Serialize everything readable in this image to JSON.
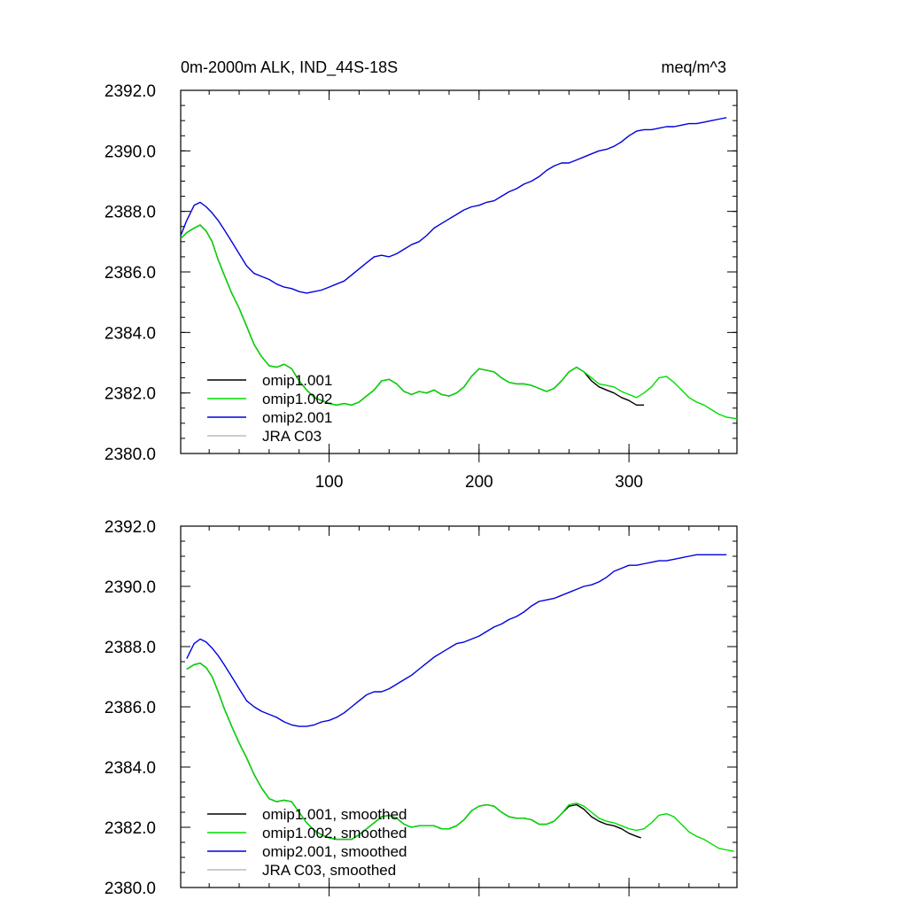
{
  "figure": {
    "title_left": "0m-2000m ALK, IND_44S-18S",
    "title_right": "meq/m^3"
  },
  "chart_data": [
    {
      "type": "line",
      "panel": "raw",
      "xlim": [
        1,
        372
      ],
      "ylim": [
        2380,
        2392
      ],
      "xticks": [
        100,
        200,
        300
      ],
      "yticks": [
        2380,
        2382,
        2384,
        2386,
        2388,
        2390,
        2392
      ],
      "ytick_labels": [
        "2380.0",
        "2382.0",
        "2384.0",
        "2386.0",
        "2388.0",
        "2390.0",
        "2392.0"
      ],
      "xtick_labels": [
        "100",
        "200",
        "300"
      ],
      "legend_position": "bottom-left",
      "series": [
        {
          "name": "omip1.001",
          "color": "#000000",
          "x": [
            1,
            5,
            10,
            14,
            18,
            22,
            26,
            30,
            35,
            40,
            45,
            50,
            55,
            60,
            65,
            70,
            75,
            80,
            85,
            90,
            95,
            100,
            105,
            110,
            115,
            120,
            125,
            130,
            135,
            140,
            145,
            150,
            155,
            160,
            165,
            170,
            175,
            180,
            185,
            190,
            195,
            200,
            205,
            210,
            215,
            220,
            225,
            230,
            235,
            240,
            245,
            250,
            255,
            260,
            265,
            270,
            275,
            280,
            285,
            290,
            295,
            300,
            305,
            310
          ],
          "y": [
            2387.1,
            2387.3,
            2387.45,
            2387.55,
            2387.35,
            2387.0,
            2386.4,
            2385.9,
            2385.3,
            2384.8,
            2384.2,
            2383.6,
            2383.2,
            2382.9,
            2382.85,
            2382.95,
            2382.8,
            2382.4,
            2382.1,
            2381.85,
            2381.75,
            2381.65,
            2381.6,
            2381.65,
            2381.6,
            2381.7,
            2381.9,
            2382.1,
            2382.4,
            2382.45,
            2382.3,
            2382.05,
            2381.95,
            2382.05,
            2382.0,
            2382.1,
            2381.95,
            2381.9,
            2382.0,
            2382.2,
            2382.55,
            2382.8,
            2382.75,
            2382.7,
            2382.5,
            2382.35,
            2382.3,
            2382.3,
            2382.25,
            2382.15,
            2382.05,
            2382.15,
            2382.4,
            2382.7,
            2382.85,
            2382.7,
            2382.4,
            2382.2,
            2382.1,
            2382.0,
            2381.85,
            2381.75,
            2381.6,
            2381.6
          ]
        },
        {
          "name": "omip1.002",
          "color": "#00dd00",
          "x": [
            1,
            5,
            10,
            14,
            18,
            22,
            26,
            30,
            35,
            40,
            45,
            50,
            55,
            60,
            65,
            70,
            75,
            80,
            85,
            90,
            95,
            100,
            105,
            110,
            115,
            120,
            125,
            130,
            135,
            140,
            145,
            150,
            155,
            160,
            165,
            170,
            175,
            180,
            185,
            190,
            195,
            200,
            205,
            210,
            215,
            220,
            225,
            230,
            235,
            240,
            245,
            250,
            255,
            260,
            265,
            270,
            275,
            280,
            285,
            290,
            295,
            300,
            305,
            310,
            315,
            320,
            325,
            330,
            335,
            340,
            345,
            350,
            355,
            360,
            365,
            372
          ],
          "y": [
            2387.1,
            2387.3,
            2387.45,
            2387.55,
            2387.35,
            2387.0,
            2386.4,
            2385.9,
            2385.3,
            2384.8,
            2384.2,
            2383.6,
            2383.2,
            2382.9,
            2382.85,
            2382.95,
            2382.8,
            2382.4,
            2382.1,
            2381.85,
            2381.75,
            2381.65,
            2381.6,
            2381.65,
            2381.6,
            2381.7,
            2381.9,
            2382.1,
            2382.4,
            2382.45,
            2382.3,
            2382.05,
            2381.95,
            2382.05,
            2382.0,
            2382.1,
            2381.95,
            2381.9,
            2382.0,
            2382.2,
            2382.55,
            2382.8,
            2382.75,
            2382.7,
            2382.5,
            2382.35,
            2382.3,
            2382.3,
            2382.25,
            2382.15,
            2382.05,
            2382.15,
            2382.4,
            2382.7,
            2382.85,
            2382.7,
            2382.5,
            2382.3,
            2382.25,
            2382.2,
            2382.05,
            2381.95,
            2381.85,
            2382.0,
            2382.2,
            2382.5,
            2382.55,
            2382.35,
            2382.1,
            2381.85,
            2381.7,
            2381.6,
            2381.45,
            2381.3,
            2381.2,
            2381.15
          ]
        },
        {
          "name": "omip2.001",
          "color": "#0000dd",
          "x": [
            1,
            5,
            10,
            14,
            18,
            22,
            26,
            30,
            35,
            40,
            45,
            50,
            55,
            60,
            65,
            70,
            75,
            80,
            85,
            90,
            95,
            100,
            105,
            110,
            115,
            120,
            125,
            130,
            135,
            140,
            145,
            150,
            155,
            160,
            165,
            170,
            175,
            180,
            185,
            190,
            195,
            200,
            205,
            210,
            215,
            220,
            225,
            230,
            235,
            240,
            245,
            250,
            255,
            260,
            265,
            270,
            275,
            280,
            285,
            290,
            295,
            300,
            305,
            310,
            315,
            320,
            325,
            330,
            335,
            340,
            345,
            350,
            355,
            360,
            365
          ],
          "y": [
            2387.2,
            2387.7,
            2388.2,
            2388.3,
            2388.15,
            2387.95,
            2387.7,
            2387.4,
            2387.0,
            2386.6,
            2386.2,
            2385.95,
            2385.85,
            2385.75,
            2385.6,
            2385.5,
            2385.45,
            2385.35,
            2385.3,
            2385.35,
            2385.4,
            2385.5,
            2385.6,
            2385.7,
            2385.9,
            2386.1,
            2386.3,
            2386.5,
            2386.55,
            2386.5,
            2386.6,
            2386.75,
            2386.9,
            2387.0,
            2387.2,
            2387.45,
            2387.6,
            2387.75,
            2387.9,
            2388.05,
            2388.15,
            2388.2,
            2388.3,
            2388.35,
            2388.5,
            2388.65,
            2388.75,
            2388.9,
            2389.0,
            2389.15,
            2389.35,
            2389.5,
            2389.6,
            2389.6,
            2389.7,
            2389.8,
            2389.9,
            2390.0,
            2390.05,
            2390.15,
            2390.3,
            2390.5,
            2390.65,
            2390.7,
            2390.7,
            2390.75,
            2390.8,
            2390.8,
            2390.85,
            2390.9,
            2390.9,
            2390.95,
            2391.0,
            2391.05,
            2391.1
          ]
        },
        {
          "name": "JRA C03",
          "color": "#bbbbbb",
          "x": [],
          "y": []
        }
      ]
    },
    {
      "type": "line",
      "panel": "smoothed",
      "xlim": [
        1,
        372
      ],
      "ylim": [
        2380,
        2392
      ],
      "xticks": [
        100,
        200,
        300
      ],
      "yticks": [
        2380,
        2382,
        2384,
        2386,
        2388,
        2390,
        2392
      ],
      "ytick_labels": [
        "2380.0",
        "2382.0",
        "2384.0",
        "2386.0",
        "2388.0",
        "2390.0",
        "2392.0"
      ],
      "xtick_labels": [],
      "legend_position": "bottom-left",
      "series": [
        {
          "name": "omip1.001, smoothed",
          "color": "#000000",
          "x": [
            5,
            10,
            14,
            18,
            22,
            26,
            30,
            35,
            40,
            45,
            50,
            55,
            60,
            65,
            70,
            75,
            80,
            85,
            90,
            95,
            100,
            105,
            110,
            115,
            120,
            125,
            130,
            135,
            140,
            145,
            150,
            155,
            160,
            165,
            170,
            175,
            180,
            185,
            190,
            195,
            200,
            205,
            210,
            215,
            220,
            225,
            230,
            235,
            240,
            245,
            250,
            255,
            260,
            265,
            270,
            275,
            280,
            285,
            290,
            295,
            300,
            305,
            308
          ],
          "y": [
            2387.25,
            2387.4,
            2387.45,
            2387.3,
            2387.0,
            2386.5,
            2385.95,
            2385.35,
            2384.8,
            2384.3,
            2383.75,
            2383.3,
            2382.95,
            2382.85,
            2382.9,
            2382.85,
            2382.5,
            2382.15,
            2381.9,
            2381.75,
            2381.65,
            2381.6,
            2381.6,
            2381.6,
            2381.75,
            2381.95,
            2382.15,
            2382.35,
            2382.4,
            2382.3,
            2382.1,
            2382.0,
            2382.05,
            2382.05,
            2382.05,
            2381.95,
            2381.95,
            2382.05,
            2382.25,
            2382.55,
            2382.7,
            2382.75,
            2382.7,
            2382.5,
            2382.35,
            2382.3,
            2382.3,
            2382.25,
            2382.1,
            2382.1,
            2382.2,
            2382.45,
            2382.7,
            2382.75,
            2382.6,
            2382.35,
            2382.2,
            2382.1,
            2382.05,
            2381.95,
            2381.8,
            2381.7,
            2381.65
          ]
        },
        {
          "name": "omip1.002, smoothed",
          "color": "#00dd00",
          "x": [
            5,
            10,
            14,
            18,
            22,
            26,
            30,
            35,
            40,
            45,
            50,
            55,
            60,
            65,
            70,
            75,
            80,
            85,
            90,
            95,
            100,
            105,
            110,
            115,
            120,
            125,
            130,
            135,
            140,
            145,
            150,
            155,
            160,
            165,
            170,
            175,
            180,
            185,
            190,
            195,
            200,
            205,
            210,
            215,
            220,
            225,
            230,
            235,
            240,
            245,
            250,
            255,
            260,
            265,
            270,
            275,
            280,
            285,
            290,
            295,
            300,
            305,
            310,
            315,
            320,
            325,
            330,
            335,
            340,
            345,
            350,
            355,
            360,
            365,
            370
          ],
          "y": [
            2387.25,
            2387.4,
            2387.45,
            2387.3,
            2387.0,
            2386.5,
            2385.95,
            2385.35,
            2384.8,
            2384.3,
            2383.75,
            2383.3,
            2382.95,
            2382.85,
            2382.9,
            2382.85,
            2382.5,
            2382.15,
            2381.9,
            2381.75,
            2381.65,
            2381.6,
            2381.6,
            2381.6,
            2381.75,
            2381.95,
            2382.15,
            2382.35,
            2382.4,
            2382.3,
            2382.1,
            2382.0,
            2382.05,
            2382.05,
            2382.05,
            2381.95,
            2381.95,
            2382.05,
            2382.25,
            2382.55,
            2382.7,
            2382.75,
            2382.7,
            2382.5,
            2382.35,
            2382.3,
            2382.3,
            2382.25,
            2382.1,
            2382.1,
            2382.2,
            2382.45,
            2382.75,
            2382.8,
            2382.7,
            2382.5,
            2382.3,
            2382.2,
            2382.15,
            2382.05,
            2381.95,
            2381.9,
            2381.95,
            2382.15,
            2382.4,
            2382.45,
            2382.35,
            2382.1,
            2381.85,
            2381.7,
            2381.6,
            2381.45,
            2381.3,
            2381.25,
            2381.2
          ]
        },
        {
          "name": "omip2.001, smoothed",
          "color": "#0000dd",
          "x": [
            5,
            10,
            14,
            18,
            22,
            26,
            30,
            35,
            40,
            45,
            50,
            55,
            60,
            65,
            70,
            75,
            80,
            85,
            90,
            95,
            100,
            105,
            110,
            115,
            120,
            125,
            130,
            135,
            140,
            145,
            150,
            155,
            160,
            165,
            170,
            175,
            180,
            185,
            190,
            195,
            200,
            205,
            210,
            215,
            220,
            225,
            230,
            235,
            240,
            245,
            250,
            255,
            260,
            265,
            270,
            275,
            280,
            285,
            290,
            295,
            300,
            305,
            310,
            315,
            320,
            325,
            330,
            335,
            340,
            345,
            350,
            355,
            360,
            365
          ],
          "y": [
            2387.6,
            2388.1,
            2388.25,
            2388.15,
            2387.95,
            2387.7,
            2387.4,
            2387.0,
            2386.6,
            2386.2,
            2386.0,
            2385.85,
            2385.75,
            2385.65,
            2385.5,
            2385.4,
            2385.35,
            2385.35,
            2385.4,
            2385.5,
            2385.55,
            2385.65,
            2385.8,
            2386.0,
            2386.2,
            2386.4,
            2386.5,
            2386.5,
            2386.6,
            2386.75,
            2386.9,
            2387.05,
            2387.25,
            2387.45,
            2387.65,
            2387.8,
            2387.95,
            2388.1,
            2388.15,
            2388.25,
            2388.35,
            2388.5,
            2388.65,
            2388.75,
            2388.9,
            2389.0,
            2389.15,
            2389.35,
            2389.5,
            2389.55,
            2389.6,
            2389.7,
            2389.8,
            2389.9,
            2390.0,
            2390.05,
            2390.15,
            2390.3,
            2390.5,
            2390.6,
            2390.7,
            2390.7,
            2390.75,
            2390.8,
            2390.85,
            2390.85,
            2390.9,
            2390.95,
            2391.0,
            2391.05,
            2391.05,
            2391.05,
            2391.05,
            2391.05
          ]
        },
        {
          "name": "JRA C03, smoothed",
          "color": "#bbbbbb",
          "x": [],
          "y": []
        }
      ]
    }
  ]
}
